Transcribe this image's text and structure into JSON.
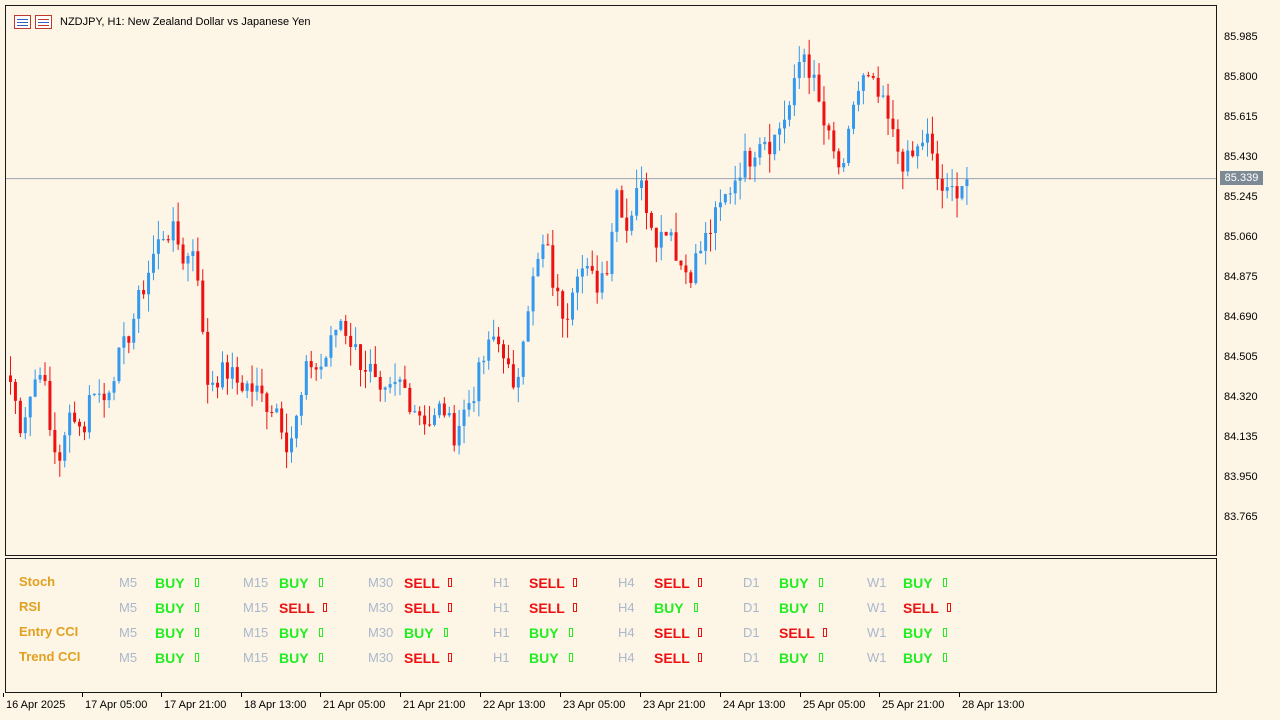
{
  "window": {
    "title": "NZDJPY, H1:  New Zealand Dollar vs Japanese Yen",
    "icons": [
      "chart-window-icon",
      "chart-properties-icon"
    ]
  },
  "price_axis": {
    "labels": [
      "85.985",
      "85.800",
      "85.615",
      "85.430",
      "85.245",
      "85.060",
      "84.875",
      "84.690",
      "84.505",
      "84.320",
      "84.135",
      "83.950",
      "83.765"
    ],
    "current_price": "85.339"
  },
  "time_axis": {
    "labels": [
      "16 Apr 2025",
      "17 Apr 05:00",
      "17 Apr 21:00",
      "18 Apr 13:00",
      "21 Apr 05:00",
      "21 Apr 21:00",
      "22 Apr 13:00",
      "23 Apr 05:00",
      "23 Apr 21:00",
      "24 Apr 13:00",
      "25 Apr 05:00",
      "25 Apr 21:00",
      "28 Apr 13:00"
    ]
  },
  "colors": {
    "bull": "#3399ee",
    "bear": "#ee1111",
    "background": "#fdf5e6",
    "buy_text": "#22ee22",
    "sell_text": "#ee1111",
    "indicator_name": "#e0a020",
    "timeframe_text": "#aab8cc"
  },
  "indicator_panel": {
    "rows": [
      {
        "name": "Stoch",
        "cells": [
          {
            "tf": "M5",
            "signal": "BUY"
          },
          {
            "tf": "M15",
            "signal": "BUY"
          },
          {
            "tf": "M30",
            "signal": "SELL"
          },
          {
            "tf": "H1",
            "signal": "SELL"
          },
          {
            "tf": "H4",
            "signal": "SELL"
          },
          {
            "tf": "D1",
            "signal": "BUY"
          },
          {
            "tf": "W1",
            "signal": "BUY"
          }
        ]
      },
      {
        "name": "RSI",
        "cells": [
          {
            "tf": "M5",
            "signal": "BUY"
          },
          {
            "tf": "M15",
            "signal": "SELL"
          },
          {
            "tf": "M30",
            "signal": "SELL"
          },
          {
            "tf": "H1",
            "signal": "SELL"
          },
          {
            "tf": "H4",
            "signal": "BUY"
          },
          {
            "tf": "D1",
            "signal": "BUY"
          },
          {
            "tf": "W1",
            "signal": "SELL"
          }
        ]
      },
      {
        "name": "Entry CCI",
        "cells": [
          {
            "tf": "M5",
            "signal": "BUY"
          },
          {
            "tf": "M15",
            "signal": "BUY"
          },
          {
            "tf": "M30",
            "signal": "BUY"
          },
          {
            "tf": "H1",
            "signal": "BUY"
          },
          {
            "tf": "H4",
            "signal": "SELL"
          },
          {
            "tf": "D1",
            "signal": "SELL"
          },
          {
            "tf": "W1",
            "signal": "BUY"
          }
        ]
      },
      {
        "name": "Trend CCI",
        "cells": [
          {
            "tf": "M5",
            "signal": "BUY"
          },
          {
            "tf": "M15",
            "signal": "BUY"
          },
          {
            "tf": "M30",
            "signal": "SELL"
          },
          {
            "tf": "H1",
            "signal": "BUY"
          },
          {
            "tf": "H4",
            "signal": "SELL"
          },
          {
            "tf": "D1",
            "signal": "BUY"
          },
          {
            "tf": "W1",
            "signal": "BUY"
          }
        ]
      }
    ]
  },
  "chart_data": {
    "type": "candlestick",
    "symbol": "NZDJPY",
    "timeframe": "H1",
    "ylim": [
      83.6,
      86.1
    ],
    "current_price": 85.339,
    "path": [
      84.4,
      84.2,
      84.35,
      84.5,
      84.1,
      84.05,
      84.3,
      84.15,
      84.4,
      84.3,
      84.45,
      84.55,
      84.7,
      84.85,
      85.0,
      85.1,
      85.08,
      84.95,
      85.05,
      84.4,
      84.42,
      84.45,
      84.4,
      84.38,
      84.35,
      84.3,
      84.28,
      84.1,
      84.25,
      84.5,
      84.45,
      84.55,
      84.7,
      84.6,
      84.5,
      84.45,
      84.3,
      84.35,
      84.4,
      84.3,
      84.25,
      84.2,
      84.3,
      84.15,
      84.25,
      84.35,
      84.5,
      84.6,
      84.55,
      84.3,
      84.7,
      84.9,
      85.05,
      84.8,
      84.7,
      84.95,
      84.9,
      84.85,
      84.95,
      85.3,
      85.1,
      85.35,
      85.2,
      85.05,
      85.15,
      84.95,
      84.9,
      85.0,
      85.1,
      85.2,
      85.3,
      85.4,
      85.45,
      85.55,
      85.5,
      85.6,
      85.7,
      85.95,
      85.8,
      85.6,
      85.45,
      85.35,
      85.7,
      85.8,
      85.75,
      85.65,
      85.5,
      85.4,
      85.45,
      85.55,
      85.35,
      85.25,
      85.3,
      85.34
    ]
  }
}
